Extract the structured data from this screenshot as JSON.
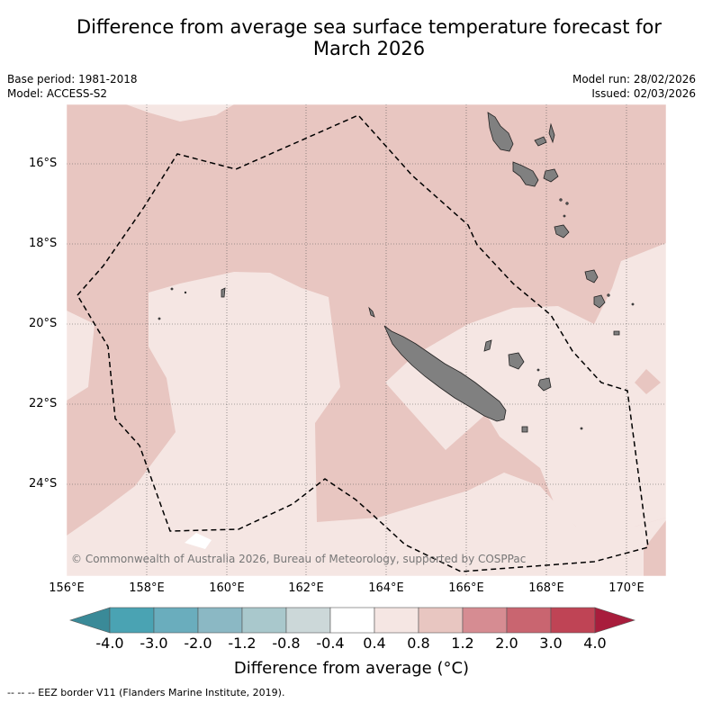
{
  "title": "Difference from average sea surface temperature forecast for March 2026",
  "meta": {
    "base_period": "Base period: 1981-2018",
    "model": "Model: ACCESS-S2",
    "model_run": "Model run: 28/02/2026",
    "issued": "Issued: 02/03/2026"
  },
  "axes": {
    "lat_labels": [
      "16°S",
      "18°S",
      "20°S",
      "22°S",
      "24°S"
    ],
    "lon_labels": [
      "156°E",
      "158°E",
      "160°E",
      "162°E",
      "164°E",
      "166°E",
      "168°E",
      "170°E"
    ]
  },
  "copyright": "© Commonwealth of Australia 2026, Bureau of Meteorology, supported by COSPPac",
  "colorbar": {
    "ticks": [
      "-4.0",
      "-3.0",
      "-2.0",
      "-1.2",
      "-0.8",
      "-0.4",
      "0.4",
      "0.8",
      "1.2",
      "2.0",
      "3.0",
      "4.0"
    ],
    "colors": [
      "#3a8a98",
      "#4aa3b3",
      "#6aadbd",
      "#8bb8c4",
      "#a9c8cc",
      "#ccd8d9",
      "#ffffff",
      "#f5e6e3",
      "#e8c6c1",
      "#d68c92",
      "#c96570",
      "#bf4455",
      "#a81d3c"
    ],
    "label": "Difference from average (°C)"
  },
  "footnote": "--  --  -- EEZ border V11 (Flanders Marine Institute, 2019).",
  "colors": {
    "warm_anomaly": "#e8c6c1",
    "slight_anomaly": "#f5e6e3",
    "land": "#808080"
  }
}
